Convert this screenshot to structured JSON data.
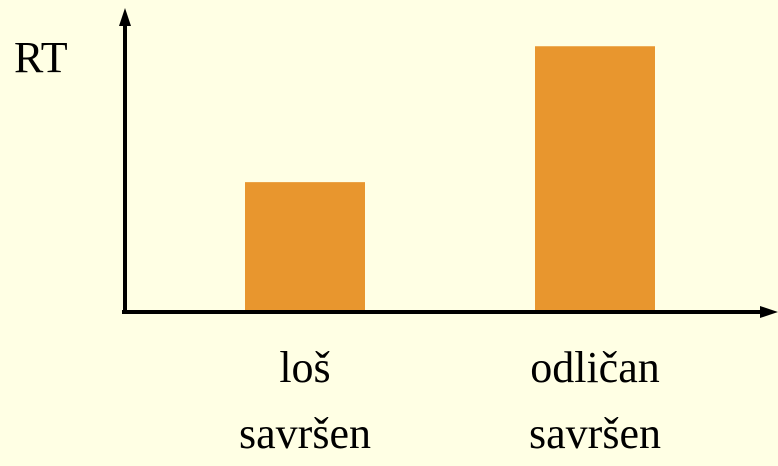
{
  "chart_data": {
    "type": "bar",
    "y_label": "RT",
    "categories": [
      [
        "loš",
        "savršen"
      ],
      [
        "odličan",
        "savršen"
      ]
    ],
    "values": [
      43,
      88
    ],
    "color": "#e8962e",
    "ylim": [
      0,
      100
    ]
  }
}
